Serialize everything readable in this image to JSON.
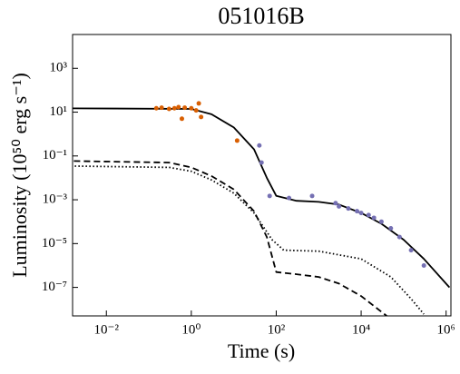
{
  "chart_data": {
    "type": "line",
    "title": "051016B",
    "xlabel": "Time (s)",
    "ylabel": "Luminosity (10⁵⁰ erg s⁻¹)",
    "xscale": "log",
    "yscale": "log",
    "xlim": [
      0.0016,
      1300000
    ],
    "ylim": [
      5e-09,
      35000
    ],
    "xticks": [
      {
        "value": 0.01,
        "label": "10⁻²"
      },
      {
        "value": 1,
        "label": "10⁰"
      },
      {
        "value": 100,
        "label": "10²"
      },
      {
        "value": 10000,
        "label": "10⁴"
      },
      {
        "value": 1000000,
        "label": "10⁶"
      }
    ],
    "yticks": [
      {
        "value": 1e-07,
        "label": "10⁻⁷"
      },
      {
        "value": 1e-05,
        "label": "10⁻⁵"
      },
      {
        "value": 0.001,
        "label": "10⁻³"
      },
      {
        "value": 0.1,
        "label": "10⁻¹"
      },
      {
        "value": 10,
        "label": "10¹"
      },
      {
        "value": 1000,
        "label": "10³"
      }
    ],
    "series": [
      {
        "style": "solid",
        "color": "#000000",
        "x": [
          0.001,
          1,
          3,
          10,
          30,
          60,
          100,
          300,
          1000,
          3000,
          10000,
          30000,
          100000,
          300000,
          1200000
        ],
        "values": [
          15,
          14,
          8,
          2,
          0.2,
          0.01,
          0.0015,
          0.0009,
          0.0008,
          0.0006,
          0.00025,
          8e-05,
          1.5e-05,
          2e-06,
          1e-07
        ]
      },
      {
        "style": "dashed",
        "color": "#000000",
        "x": [
          0.001,
          0.3,
          1,
          3,
          10,
          30,
          60,
          100,
          300,
          1000,
          3000,
          10000,
          40000
        ],
        "values": [
          0.06,
          0.05,
          0.03,
          0.012,
          0.003,
          0.0003,
          2e-05,
          5e-07,
          4e-07,
          3e-07,
          1.5e-07,
          4e-08,
          5e-09
        ]
      },
      {
        "style": "dotted",
        "color": "#000000",
        "x": [
          0.001,
          0.3,
          1,
          3,
          10,
          30,
          80,
          150,
          1000,
          10000,
          50000,
          150000,
          300000
        ],
        "values": [
          0.035,
          0.03,
          0.02,
          0.008,
          0.002,
          0.00025,
          1.5e-05,
          5e-06,
          4.5e-06,
          2e-06,
          3e-07,
          3e-08,
          6e-09
        ]
      },
      {
        "style": "points",
        "color": "#d95f02",
        "x": [
          0.15,
          0.2,
          0.3,
          0.4,
          0.5,
          0.7,
          1,
          1.3,
          1.5,
          0.6,
          1.7,
          12
        ],
        "values": [
          15,
          16,
          14,
          15,
          17,
          16,
          15,
          12,
          25,
          5,
          6,
          0.5
        ]
      },
      {
        "style": "points",
        "color": "#7570b3",
        "x": [
          40,
          45,
          70,
          200,
          700,
          2500,
          3000,
          5000,
          8000,
          10000,
          15000,
          20000,
          30000,
          50000,
          80000,
          150000,
          300000
        ],
        "values": [
          0.3,
          0.05,
          0.0015,
          0.0012,
          0.0015,
          0.0007,
          0.0005,
          0.0004,
          0.0003,
          0.00025,
          0.0002,
          0.00015,
          0.0001,
          5e-05,
          2e-05,
          5e-06,
          1e-06
        ]
      }
    ]
  }
}
